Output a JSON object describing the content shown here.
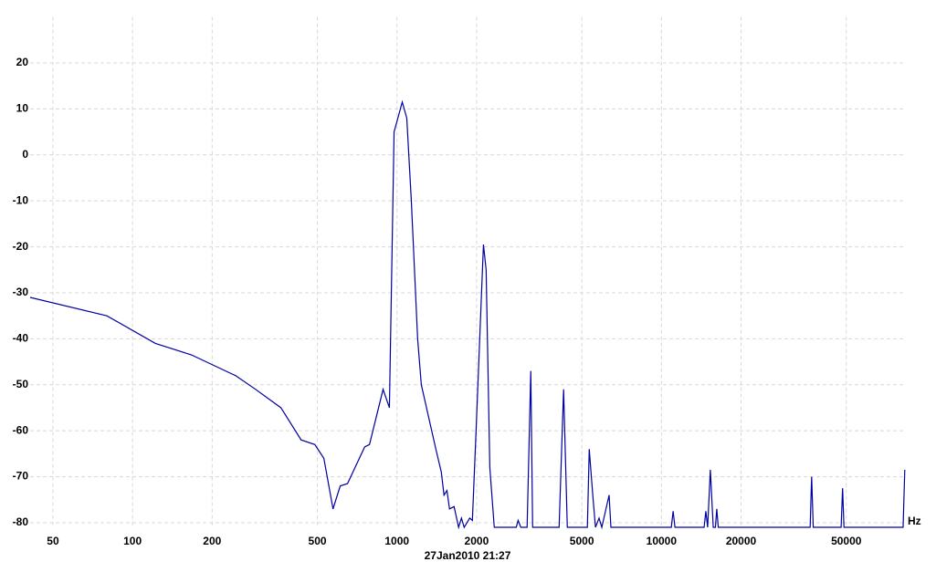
{
  "chart_data": {
    "type": "line",
    "x_unit": "Hz",
    "timestamp": "27Jan2010  21:27",
    "x": [
      41,
      80,
      122,
      167,
      245,
      292,
      364,
      434,
      489,
      529,
      573,
      610,
      650,
      755,
      787,
      886,
      936,
      975,
      1047,
      1089,
      1133,
      1197,
      1236,
      1403,
      1471,
      1506,
      1545,
      1580,
      1644,
      1710,
      1753,
      1795,
      1884,
      1928,
      1991,
      2123,
      2173,
      2244,
      2333,
      2825,
      2871,
      2939,
      3105,
      3206,
      3258,
      4102,
      4266,
      4406,
      5248,
      5333,
      5500,
      5630,
      5810,
      5950,
      6340,
      6440,
      10900,
      11070,
      11250,
      14500,
      14720,
      14950,
      15310,
      15700,
      16000,
      16190,
      16400,
      36500,
      36980,
      37500,
      47800,
      48420,
      49000,
      82000,
      83200
    ],
    "values": [
      -31,
      -35,
      -41,
      -43.5,
      -48,
      -51,
      -55,
      -62,
      -63,
      -66,
      -77,
      -72,
      -71.5,
      -63.5,
      -63,
      -51,
      -55,
      5,
      11.5,
      8,
      -10,
      -40,
      -50,
      -64,
      -69,
      -74,
      -73,
      -77,
      -76.5,
      -81,
      -79,
      -81,
      -79,
      -79.5,
      -60,
      -19.5,
      -25,
      -68,
      -81,
      -81,
      -79.5,
      -81,
      -81,
      -47,
      -81,
      -81,
      -51,
      -81,
      -81,
      -64,
      -74,
      -81,
      -79,
      -81,
      -74,
      -81,
      -81,
      -77.5,
      -81,
      -81,
      -77.5,
      -81,
      -68.5,
      -81,
      -81,
      -77,
      -81,
      -81,
      -70,
      -81,
      -81,
      -72.5,
      -81,
      -81,
      -68.5
    ],
    "color": "#0000a0",
    "log_x": true,
    "xlim": [
      41,
      84000
    ],
    "ylim": [
      -81,
      30
    ],
    "xticks": [
      50,
      100,
      200,
      500,
      1000,
      2000,
      5000,
      10000,
      20000,
      50000
    ],
    "yticks": [
      -80,
      -70,
      -60,
      -50,
      -40,
      -30,
      -20,
      -10,
      0,
      10,
      20
    ],
    "grid": true
  }
}
